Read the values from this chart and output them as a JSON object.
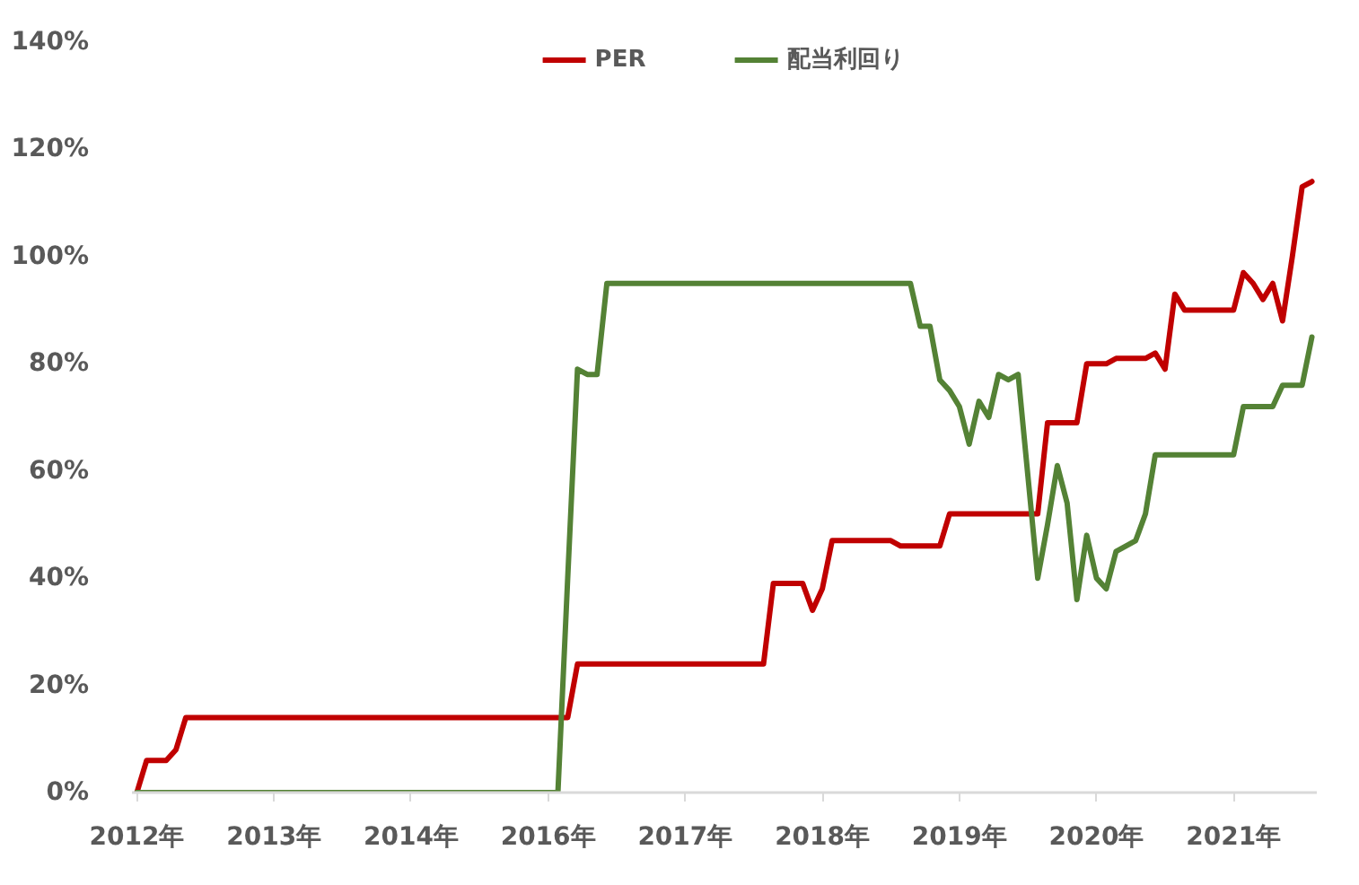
{
  "chart_data": {
    "type": "line",
    "categories": [
      "2012年",
      null,
      null,
      null,
      null,
      null,
      null,
      null,
      null,
      null,
      null,
      null,
      null,
      null,
      "2013年",
      null,
      null,
      null,
      null,
      null,
      null,
      null,
      null,
      null,
      null,
      null,
      null,
      null,
      "2014年",
      null,
      null,
      null,
      null,
      null,
      null,
      null,
      null,
      null,
      null,
      null,
      null,
      null,
      "2016年",
      null,
      null,
      null,
      null,
      null,
      null,
      null,
      null,
      null,
      null,
      null,
      null,
      null,
      "2017年",
      null,
      null,
      null,
      null,
      null,
      null,
      null,
      null,
      null,
      null,
      null,
      null,
      null,
      "2018年",
      null,
      null,
      null,
      null,
      null,
      null,
      null,
      null,
      null,
      null,
      null,
      null,
      null,
      "2019年",
      null,
      null,
      null,
      null,
      null,
      null,
      null,
      null,
      null,
      null,
      null,
      null,
      null,
      "2020年",
      null,
      null,
      null,
      null,
      null,
      null,
      null,
      null,
      null,
      null,
      null,
      null,
      null,
      "2021年",
      null,
      null,
      null,
      null,
      null,
      null,
      null,
      null
    ],
    "series": [
      {
        "name": "PER",
        "color": "#c00000",
        "values": [
          0,
          6,
          6,
          6,
          8,
          14,
          14,
          14,
          14,
          14,
          14,
          14,
          14,
          14,
          14,
          14,
          14,
          14,
          14,
          14,
          14,
          14,
          14,
          14,
          14,
          14,
          14,
          14,
          14,
          14,
          14,
          14,
          14,
          14,
          14,
          14,
          14,
          14,
          14,
          14,
          14,
          14,
          14,
          14,
          14,
          24,
          24,
          24,
          24,
          24,
          24,
          24,
          24,
          24,
          24,
          24,
          24,
          24,
          24,
          24,
          24,
          24,
          24,
          24,
          24,
          39,
          39,
          39,
          39,
          34,
          38,
          47,
          47,
          47,
          47,
          47,
          47,
          47,
          46,
          46,
          46,
          46,
          46,
          52,
          52,
          52,
          52,
          52,
          52,
          52,
          52,
          52,
          52,
          69,
          69,
          69,
          69,
          80,
          80,
          80,
          81,
          81,
          81,
          81,
          82,
          79,
          93,
          90,
          90,
          90,
          90,
          90,
          90,
          97,
          95,
          92,
          95,
          88,
          100,
          113,
          114
        ]
      },
      {
        "name": "配当利回り",
        "color": "#548235",
        "values": [
          0,
          0,
          0,
          0,
          0,
          0,
          0,
          0,
          0,
          0,
          0,
          0,
          0,
          0,
          0,
          0,
          0,
          0,
          0,
          0,
          0,
          0,
          0,
          0,
          0,
          0,
          0,
          0,
          0,
          0,
          0,
          0,
          0,
          0,
          0,
          0,
          0,
          0,
          0,
          0,
          0,
          0,
          0,
          0,
          40,
          79,
          78,
          78,
          95,
          95,
          95,
          95,
          95,
          95,
          95,
          95,
          95,
          95,
          95,
          95,
          95,
          95,
          95,
          95,
          95,
          95,
          95,
          95,
          95,
          95,
          95,
          95,
          95,
          95,
          95,
          95,
          95,
          95,
          95,
          95,
          87,
          87,
          77,
          75,
          72,
          65,
          73,
          70,
          78,
          77,
          78,
          59,
          40,
          50,
          61,
          54,
          36,
          48,
          40,
          38,
          45,
          46,
          47,
          52,
          63,
          63,
          63,
          63,
          63,
          63,
          63,
          63,
          63,
          72,
          72,
          72,
          72,
          76,
          76,
          76,
          85
        ]
      }
    ],
    "ylim": [
      0,
      140
    ],
    "yticks": [
      {
        "value": 0,
        "label": "0%"
      },
      {
        "value": 20,
        "label": "20%"
      },
      {
        "value": 40,
        "label": "40%"
      },
      {
        "value": 60,
        "label": "60%"
      },
      {
        "value": 80,
        "label": "80%"
      },
      {
        "value": 100,
        "label": "100%"
      },
      {
        "value": 120,
        "label": "120%"
      },
      {
        "value": 140,
        "label": "140%"
      }
    ],
    "legend": "top",
    "line_style": "solid"
  }
}
